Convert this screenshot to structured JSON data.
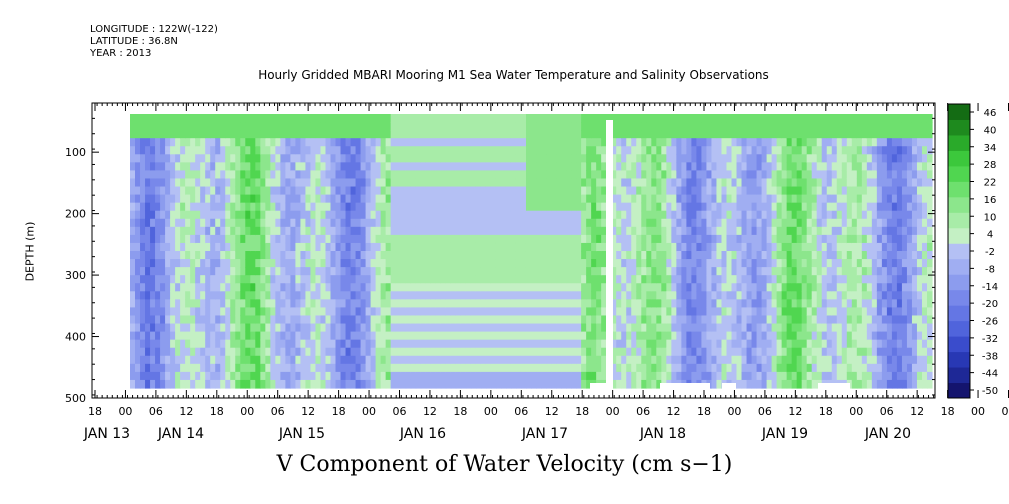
{
  "header": {
    "longitude": "LONGITUDE : 122W(-122)",
    "latitude": "LATITUDE : 36.8N",
    "year": "YEAR : 2013"
  },
  "chart_data": {
    "type": "heatmap",
    "title": "Hourly Gridded MBARI Mooring M1 Sea Water Temperature and Salinity Observations",
    "bottom_title": "V Component of Water Velocity (cm s−1)",
    "ylabel": "DEPTH (m)",
    "xlabel": "",
    "y_ticks": [
      100,
      200,
      300,
      400,
      500
    ],
    "ylim": [
      500,
      20
    ],
    "x_hour_ticks": [
      "18",
      "00",
      "06",
      "12",
      "18",
      "00",
      "06",
      "12",
      "18",
      "00",
      "06",
      "12",
      "18",
      "00",
      "06",
      "12",
      "18",
      "00",
      "06",
      "12",
      "18",
      "00",
      "06",
      "12",
      "18",
      "00",
      "06",
      "12",
      "18",
      "00",
      "06",
      "12"
    ],
    "x_day_labels": [
      "JAN 13",
      "JAN 14",
      "JAN 15",
      "JAN 16",
      "JAN 17",
      "JAN 18",
      "JAN 19",
      "JAN 20"
    ],
    "colorbar": {
      "levels": [
        -50,
        -44,
        -38,
        -32,
        -26,
        -20,
        -14,
        -8,
        -2,
        4,
        10,
        16,
        22,
        28,
        34,
        40,
        46
      ],
      "labels": [
        "46",
        "40",
        "34",
        "28",
        "22",
        "16",
        "10",
        "4",
        "-2",
        "-8",
        "-14",
        "-20",
        "-26",
        "-32",
        "-38",
        "-44",
        "-50"
      ],
      "colors_low_to_high": [
        "#14146e",
        "#1e2896",
        "#2838b4",
        "#3a4ccc",
        "#5064dc",
        "#6476e4",
        "#7888ea",
        "#8c9cee",
        "#a0aef2",
        "#b4c0f4",
        "#c4f0c4",
        "#a8eca8",
        "#8ce68c",
        "#6ee06e",
        "#50d650",
        "#3cc83c",
        "#2aaa2a",
        "#1e8a1e",
        "#146c14"
      ]
    },
    "columns": [
      {
        "day": 13.0,
        "profile": "mixed"
      },
      {
        "day": 13.25,
        "profile": "blue"
      },
      {
        "day": 13.5,
        "profile": "green"
      },
      {
        "day": 13.75,
        "profile": "blue"
      },
      {
        "day": 14.0,
        "profile": "green"
      },
      {
        "day": 14.25,
        "profile": "blue"
      },
      {
        "day": 14.5,
        "profile": "green"
      },
      {
        "day": 14.75,
        "profile": "mixed"
      },
      {
        "day": 15.0,
        "profile": "blue"
      },
      {
        "day": 15.25,
        "profile": "green"
      },
      {
        "day": 15.5,
        "profile": "layered"
      },
      {
        "day": 16.0,
        "profile": "layered"
      },
      {
        "day": 16.5,
        "profile": "layered"
      },
      {
        "day": 17.0,
        "profile": "layered"
      },
      {
        "day": 17.25,
        "profile": "blue"
      },
      {
        "day": 17.5,
        "profile": "green"
      },
      {
        "day": 17.75,
        "profile": "blue"
      },
      {
        "day": 18.0,
        "profile": "blue"
      },
      {
        "day": 18.25,
        "profile": "mixed"
      },
      {
        "day": 18.5,
        "profile": "blue"
      },
      {
        "day": 18.75,
        "profile": "blue"
      },
      {
        "day": 19.0,
        "profile": "blue"
      },
      {
        "day": 19.25,
        "profile": "mixed"
      },
      {
        "day": 19.5,
        "profile": "green"
      },
      {
        "day": 19.75,
        "profile": "green"
      },
      {
        "day": 20.0,
        "profile": "green"
      }
    ]
  }
}
